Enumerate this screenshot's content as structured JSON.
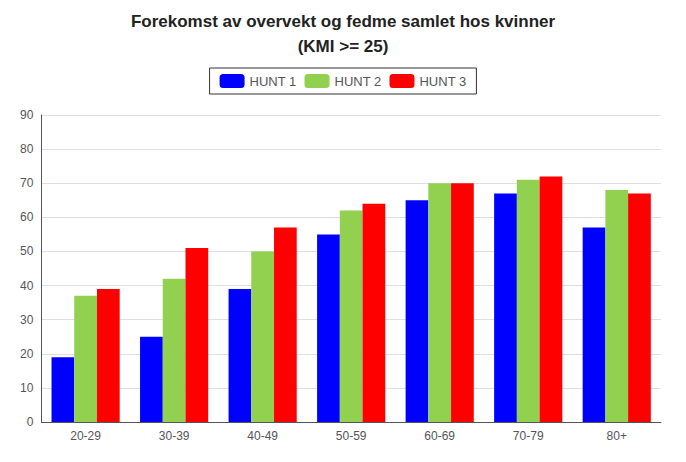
{
  "chart_data": {
    "type": "bar",
    "title": "Forekomst av overvekt og fedme samlet hos kvinner",
    "subtitle": "(KMI >= 25)",
    "categories": [
      "20-29",
      "30-39",
      "40-49",
      "50-59",
      "60-69",
      "70-79",
      "80+"
    ],
    "series": [
      {
        "name": "HUNT 1",
        "color": "#0000FF",
        "values": [
          19,
          25,
          39,
          55,
          65,
          67,
          57
        ]
      },
      {
        "name": "HUNT 2",
        "color": "#92D050",
        "values": [
          37,
          42,
          50,
          62,
          70,
          71,
          68
        ]
      },
      {
        "name": "HUNT 3",
        "color": "#FF0000",
        "values": [
          39,
          51,
          57,
          64,
          70,
          72,
          67
        ]
      }
    ],
    "ylim": [
      0,
      90
    ],
    "yticks": [
      0,
      10,
      20,
      30,
      40,
      50,
      60,
      70,
      80,
      90
    ],
    "grid": true,
    "legend": "top"
  }
}
